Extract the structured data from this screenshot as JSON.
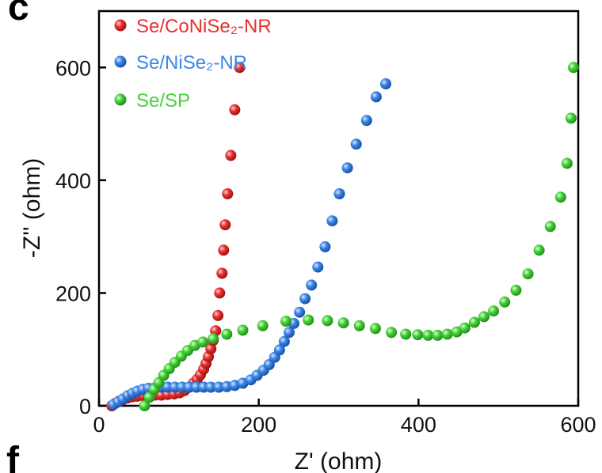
{
  "panel_labels": [
    "c",
    "f"
  ],
  "chart_data": {
    "type": "scatter",
    "xlabel": "Z' (ohm)",
    "ylabel": "-Z'' (ohm)",
    "xlim": [
      0,
      600
    ],
    "ylim": [
      0,
      700
    ],
    "xticks": [
      "0",
      "200",
      "400",
      "600"
    ],
    "yticks": [
      "0",
      "200",
      "400",
      "600"
    ],
    "grid": false,
    "legend_position": "top-left",
    "series": [
      {
        "name": "Se/CoNiSe₂-NR",
        "color": "#e8312f",
        "x": [
          16,
          20,
          25,
          30,
          36,
          42,
          48,
          55,
          62,
          70,
          78,
          86,
          94,
          101,
          107,
          113,
          118,
          123,
          127,
          131,
          134,
          137,
          140,
          143,
          146,
          149,
          151,
          154,
          156,
          158,
          161,
          165,
          170,
          176
        ],
        "y": [
          0,
          4,
          8,
          11,
          14,
          16,
          17,
          18,
          18,
          19,
          19,
          20,
          21,
          23,
          27,
          33,
          40,
          47,
          55,
          65,
          75,
          87,
          101,
          116,
          133,
          160,
          200,
          235,
          276,
          321,
          376,
          444,
          525,
          600
        ]
      },
      {
        "name": "Se/NiSe₂-NR",
        "color": "#3a86e8",
        "x": [
          18,
          24,
          30,
          36,
          42,
          48,
          55,
          62,
          70,
          78,
          86,
          95,
          104,
          113,
          122,
          131,
          140,
          150,
          160,
          170,
          180,
          190,
          198,
          206,
          213,
          220,
          226,
          232,
          238,
          244,
          251,
          258,
          266,
          274,
          283,
          292,
          301,
          311,
          322,
          335,
          347,
          359
        ],
        "y": [
          2,
          7,
          12,
          18,
          22,
          26,
          29,
          31,
          32,
          33,
          33,
          33,
          33,
          33,
          33,
          33,
          33,
          33,
          34,
          36,
          40,
          46,
          54,
          63,
          73,
          86,
          99,
          114,
          130,
          146,
          166,
          190,
          214,
          246,
          282,
          328,
          376,
          422,
          464,
          506,
          548,
          571
        ]
      },
      {
        "name": "Se/SP",
        "color": "#46d23a",
        "x": [
          57,
          63,
          69,
          75,
          81,
          88,
          95,
          103,
          111,
          120,
          130,
          143,
          160,
          180,
          205,
          234,
          262,
          286,
          306,
          326,
          346,
          366,
          384,
          399,
          412,
          424,
          436,
          448,
          458,
          470,
          482,
          494,
          508,
          522,
          537,
          551,
          565,
          578,
          586,
          591,
          594
        ],
        "y": [
          0,
          15,
          29,
          41,
          54,
          66,
          77,
          88,
          98,
          107,
          113,
          119,
          127,
          134,
          142,
          150,
          152,
          151,
          147,
          142,
          137,
          130,
          127,
          126,
          125,
          125,
          127,
          131,
          138,
          148,
          158,
          168,
          184,
          205,
          234,
          276,
          318,
          370,
          430,
          510,
          600
        ]
      }
    ]
  }
}
